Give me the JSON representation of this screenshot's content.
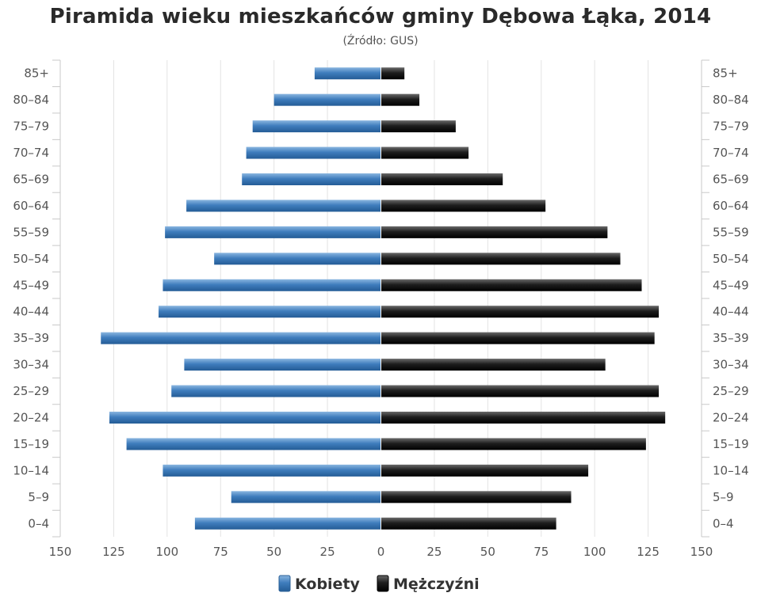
{
  "chart_data": {
    "type": "bar",
    "orientation": "horizontal-population-pyramid",
    "title": "Piramida wieku mieszkańców gminy Dębowa Łąka, 2014",
    "subtitle": "(Źródło: GUS)",
    "categories": [
      "0–4",
      "5–9",
      "10–14",
      "15–19",
      "20–24",
      "25–29",
      "30–34",
      "35–39",
      "40–44",
      "45–49",
      "50–54",
      "55–59",
      "60–64",
      "65–69",
      "70–74",
      "75–79",
      "80–84",
      "85+"
    ],
    "series": [
      {
        "name": "Kobiety",
        "color": "#3d7ab8",
        "side": "left",
        "values": [
          87,
          70,
          102,
          119,
          127,
          98,
          92,
          131,
          104,
          102,
          78,
          101,
          91,
          65,
          63,
          60,
          50,
          31
        ]
      },
      {
        "name": "Mężczyźni",
        "color": "#1a1a1a",
        "side": "right",
        "values": [
          82,
          89,
          97,
          124,
          133,
          130,
          105,
          128,
          130,
          122,
          112,
          106,
          77,
          57,
          41,
          35,
          18,
          11
        ]
      }
    ],
    "xlim": [
      -150,
      150
    ],
    "xticks": [
      "150",
      "125",
      "100",
      "75",
      "50",
      "25",
      "0",
      "25",
      "50",
      "75",
      "100",
      "125",
      "150"
    ],
    "grid": true,
    "legend": "bottom"
  }
}
